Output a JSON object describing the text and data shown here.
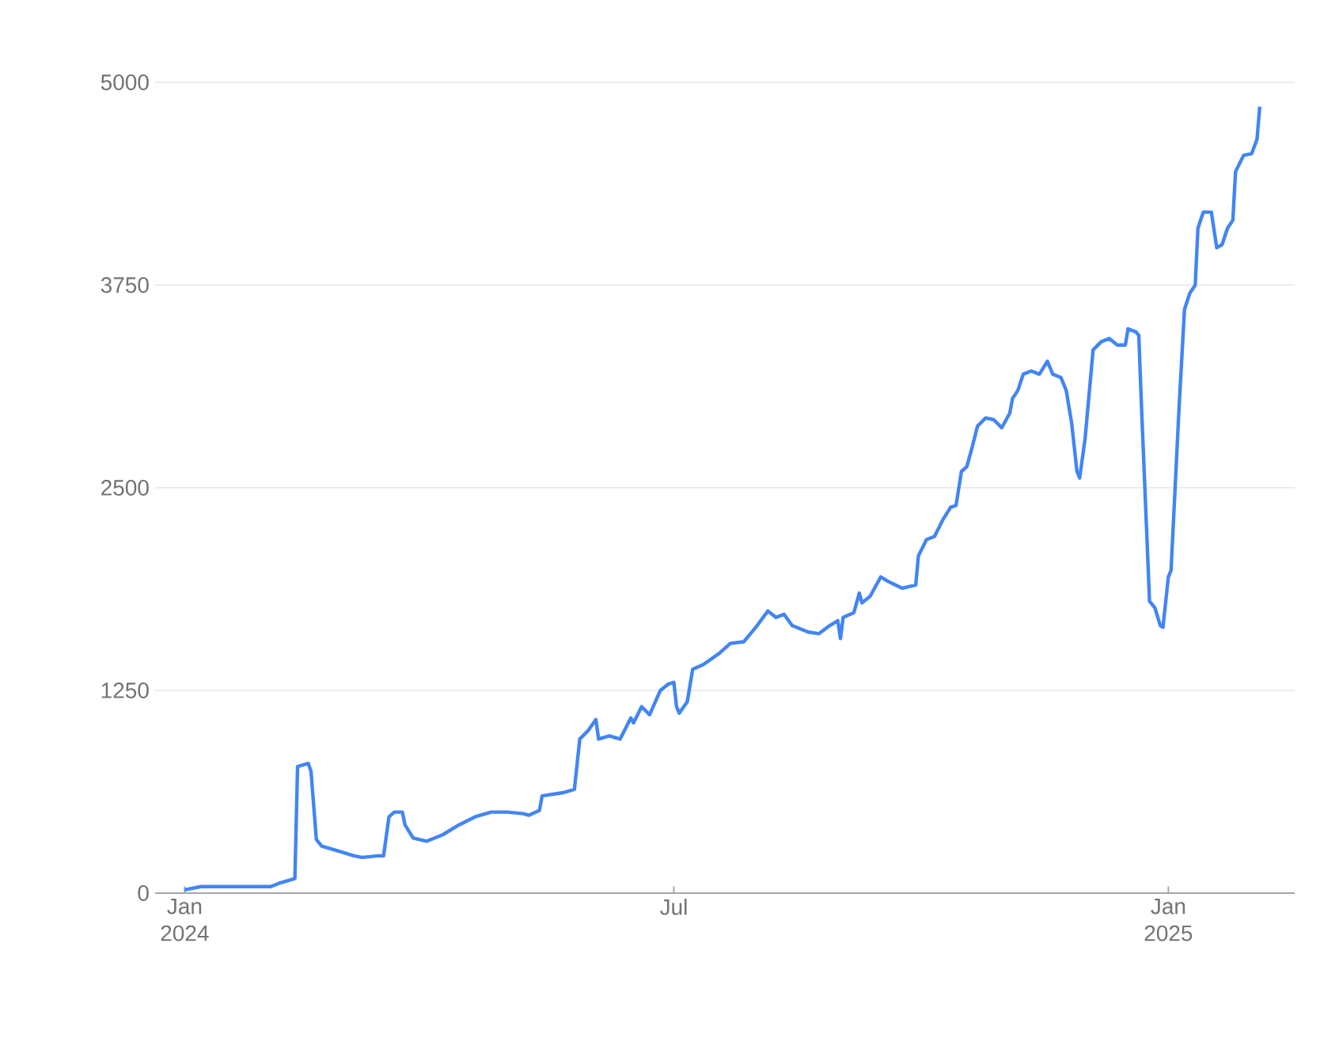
{
  "chart_data": {
    "type": "line",
    "xlim": [
      "2023-12-21",
      "2025-02-17"
    ],
    "ylim": [
      0,
      5000
    ],
    "xticks": [
      {
        "value": "2024-01-01",
        "label": "Jan 2024"
      },
      {
        "value": "2024-07-01",
        "label": "Jul"
      },
      {
        "value": "2025-01-01",
        "label": "Jan 2025"
      }
    ],
    "yticks": [
      0,
      1250,
      2500,
      3750,
      5000
    ],
    "grid": "y",
    "line_style": "solid",
    "x": [
      "2024-01-01",
      "2024-01-07",
      "2024-02-02",
      "2024-02-05",
      "2024-02-09",
      "2024-02-11",
      "2024-02-12",
      "2024-02-16",
      "2024-02-17",
      "2024-02-19",
      "2024-02-21",
      "2024-02-27",
      "2024-03-04",
      "2024-03-07",
      "2024-03-13",
      "2024-03-15",
      "2024-03-17",
      "2024-03-19",
      "2024-03-22",
      "2024-03-23",
      "2024-03-26",
      "2024-03-31",
      "2024-04-06",
      "2024-04-12",
      "2024-04-18",
      "2024-04-24",
      "2024-04-30",
      "2024-05-06",
      "2024-05-08",
      "2024-05-12",
      "2024-05-13",
      "2024-05-21",
      "2024-05-25",
      "2024-05-27",
      "2024-05-30",
      "2024-06-02",
      "2024-06-03",
      "2024-06-07",
      "2024-06-11",
      "2024-06-15",
      "2024-06-16",
      "2024-06-19",
      "2024-06-22",
      "2024-06-26",
      "2024-06-29",
      "2024-07-01",
      "2024-07-02",
      "2024-07-03",
      "2024-07-06",
      "2024-07-08",
      "2024-07-12",
      "2024-07-18",
      "2024-07-22",
      "2024-07-27",
      "2024-08-01",
      "2024-08-05",
      "2024-08-08",
      "2024-08-11",
      "2024-08-14",
      "2024-08-20",
      "2024-08-24",
      "2024-08-28",
      "2024-08-31",
      "2024-09-01",
      "2024-09-02",
      "2024-09-06",
      "2024-09-08",
      "2024-09-09",
      "2024-09-12",
      "2024-09-16",
      "2024-09-19",
      "2024-09-24",
      "2024-09-29",
      "2024-09-30",
      "2024-10-03",
      "2024-10-06",
      "2024-10-09",
      "2024-10-12",
      "2024-10-14",
      "2024-10-16",
      "2024-10-18",
      "2024-10-20",
      "2024-10-22",
      "2024-10-25",
      "2024-10-28",
      "2024-10-31",
      "2024-11-03",
      "2024-11-04",
      "2024-11-06",
      "2024-11-08",
      "2024-11-11",
      "2024-11-14",
      "2024-11-17",
      "2024-11-19",
      "2024-11-22",
      "2024-11-24",
      "2024-11-26",
      "2024-11-28",
      "2024-11-29",
      "2024-12-01",
      "2024-12-04",
      "2024-12-07",
      "2024-12-10",
      "2024-12-13",
      "2024-12-16",
      "2024-12-17",
      "2024-12-20",
      "2024-12-21",
      "2024-12-22",
      "2024-12-25",
      "2024-12-27",
      "2024-12-29",
      "2024-12-30",
      "2025-01-01",
      "2025-01-02",
      "2025-01-05",
      "2025-01-07",
      "2025-01-09",
      "2025-01-11",
      "2025-01-12",
      "2025-01-14",
      "2025-01-17",
      "2025-01-19",
      "2025-01-21",
      "2025-01-23",
      "2025-01-25",
      "2025-01-26",
      "2025-01-29",
      "2025-02-01",
      "2025-02-03",
      "2025-02-04"
    ],
    "series": [
      {
        "color": "#4285f4",
        "values": [
          20,
          40,
          40,
          60,
          80,
          90,
          780,
          800,
          750,
          330,
          290,
          260,
          230,
          220,
          230,
          230,
          470,
          500,
          500,
          420,
          340,
          320,
          360,
          420,
          470,
          500,
          500,
          490,
          480,
          510,
          600,
          620,
          640,
          950,
          1000,
          1070,
          950,
          970,
          950,
          1080,
          1050,
          1150,
          1100,
          1250,
          1290,
          1300,
          1150,
          1110,
          1180,
          1380,
          1410,
          1480,
          1540,
          1550,
          1650,
          1740,
          1700,
          1720,
          1650,
          1610,
          1600,
          1650,
          1680,
          1570,
          1700,
          1730,
          1850,
          1790,
          1830,
          1950,
          1920,
          1880,
          1900,
          2080,
          2180,
          2200,
          2300,
          2380,
          2390,
          2600,
          2630,
          2750,
          2880,
          2930,
          2920,
          2870,
          2960,
          3050,
          3100,
          3200,
          3220,
          3200,
          3280,
          3200,
          3180,
          3100,
          2900,
          2600,
          2560,
          2800,
          3350,
          3400,
          3420,
          3380,
          3380,
          3480,
          3460,
          3440,
          3000,
          1800,
          1760,
          1650,
          1640,
          1950,
          1990,
          3000,
          3600,
          3700,
          3750,
          4100,
          4200,
          4200,
          3980,
          4000,
          4100,
          4150,
          4450,
          4550,
          4560,
          4650,
          4850
        ]
      }
    ]
  }
}
